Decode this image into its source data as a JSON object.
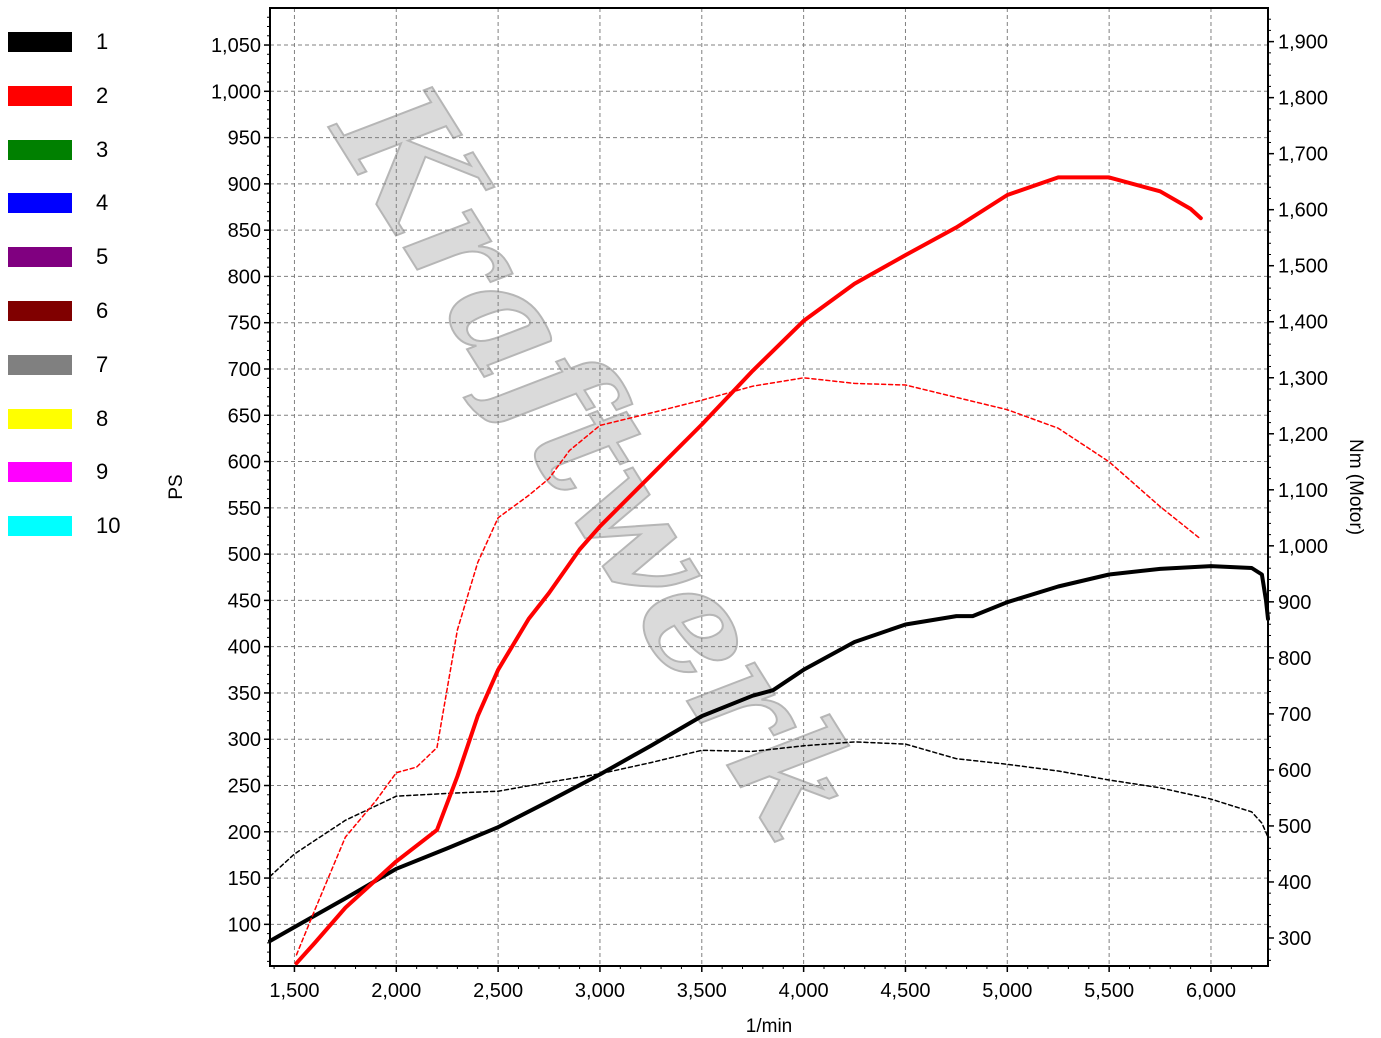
{
  "legend": [
    {
      "label": "1",
      "color": "#000000"
    },
    {
      "label": "2",
      "color": "#ff0000"
    },
    {
      "label": "3",
      "color": "#008000"
    },
    {
      "label": "4",
      "color": "#0000ff"
    },
    {
      "label": "5",
      "color": "#800080"
    },
    {
      "label": "6",
      "color": "#800000"
    },
    {
      "label": "7",
      "color": "#808080"
    },
    {
      "label": "8",
      "color": "#ffff00"
    },
    {
      "label": "9",
      "color": "#ff00ff"
    },
    {
      "label": "10",
      "color": "#00ffff"
    }
  ],
  "watermark": "Kraftwerk",
  "chart_data": {
    "type": "line",
    "xlabel": "1/min",
    "ylabel_left": "PS",
    "ylabel_right": "Nm (Motor)",
    "xlim": [
      1380,
      6280
    ],
    "ylim_left": [
      55,
      1090
    ],
    "ylim_right": [
      250,
      1960
    ],
    "grid": true,
    "legend_position": "left",
    "x_ticks": [
      1500,
      2000,
      2500,
      3000,
      3500,
      4000,
      4500,
      5000,
      5500,
      6000
    ],
    "x_tick_labels": [
      "1,500",
      "2,000",
      "2,500",
      "3,000",
      "3,500",
      "4,000",
      "4,500",
      "5,000",
      "5,500",
      "6,000"
    ],
    "y_left_ticks": [
      100,
      150,
      200,
      250,
      300,
      350,
      400,
      450,
      500,
      550,
      600,
      650,
      700,
      750,
      800,
      850,
      900,
      950,
      1000,
      1050
    ],
    "y_left_tick_labels": [
      "100",
      "150",
      "200",
      "250",
      "300",
      "350",
      "400",
      "450",
      "500",
      "550",
      "600",
      "650",
      "700",
      "750",
      "800",
      "850",
      "900",
      "950",
      "1,000",
      "1,050"
    ],
    "y_right_ticks": [
      300,
      400,
      500,
      600,
      700,
      800,
      900,
      1000,
      1100,
      1200,
      1300,
      1400,
      1500,
      1600,
      1700,
      1800,
      1900
    ],
    "y_right_tick_labels": [
      "300",
      "400",
      "500",
      "600",
      "700",
      "800",
      "900",
      "1,000",
      "1,100",
      "1,200",
      "1,300",
      "1,400",
      "1,500",
      "1,600",
      "1,700",
      "1,800",
      "1,900"
    ],
    "series": [
      {
        "name": "1",
        "kind": "power",
        "axis": "left",
        "color": "#000000",
        "x": [
          1380,
          1500,
          1750,
          2000,
          2250,
          2500,
          2750,
          3000,
          3250,
          3500,
          3750,
          3850,
          4000,
          4250,
          4500,
          4750,
          4830,
          5000,
          5250,
          5500,
          5750,
          6000,
          6200,
          6250,
          6270,
          6280
        ],
        "y": [
          82,
          97,
          128,
          160,
          182,
          205,
          233,
          262,
          293,
          325,
          347,
          353,
          375,
          405,
          424,
          433,
          433,
          448,
          465,
          478,
          484,
          487,
          485,
          478,
          450,
          430
        ]
      },
      {
        "name": "1",
        "kind": "torque",
        "axis": "right",
        "color": "#000000",
        "x": [
          1380,
          1500,
          1750,
          2000,
          2250,
          2500,
          2750,
          3000,
          3250,
          3500,
          3750,
          4000,
          4250,
          4500,
          4750,
          5000,
          5250,
          5500,
          5750,
          6000,
          6200,
          6250,
          6280
        ],
        "y": [
          410,
          450,
          510,
          553,
          558,
          562,
          578,
          593,
          613,
          635,
          633,
          643,
          650,
          646,
          620,
          610,
          598,
          582,
          568,
          548,
          525,
          505,
          480
        ]
      },
      {
        "name": "2",
        "kind": "power",
        "axis": "left",
        "color": "#ff0000",
        "x": [
          1510,
          1600,
          1750,
          2000,
          2200,
          2300,
          2400,
          2500,
          2650,
          2750,
          2900,
          3000,
          3250,
          3500,
          3750,
          4000,
          4250,
          4500,
          4750,
          5000,
          5250,
          5500,
          5750,
          5900,
          5950
        ],
        "y": [
          58,
          80,
          118,
          168,
          202,
          260,
          325,
          375,
          430,
          458,
          505,
          530,
          585,
          640,
          698,
          752,
          792,
          823,
          853,
          888,
          907,
          907,
          892,
          873,
          863
        ]
      },
      {
        "name": "2",
        "kind": "torque",
        "axis": "right",
        "color": "#ff0000",
        "x": [
          1510,
          1600,
          1750,
          1900,
          2000,
          2100,
          2200,
          2300,
          2400,
          2500,
          2650,
          2750,
          2850,
          3000,
          3250,
          3500,
          3750,
          4000,
          4250,
          4500,
          4750,
          5000,
          5250,
          5500,
          5750,
          5950
        ],
        "y": [
          270,
          350,
          480,
          545,
          595,
          605,
          640,
          850,
          970,
          1050,
          1090,
          1120,
          1170,
          1215,
          1237,
          1260,
          1285,
          1300,
          1290,
          1287,
          1265,
          1243,
          1210,
          1150,
          1070,
          1012
        ]
      }
    ]
  }
}
